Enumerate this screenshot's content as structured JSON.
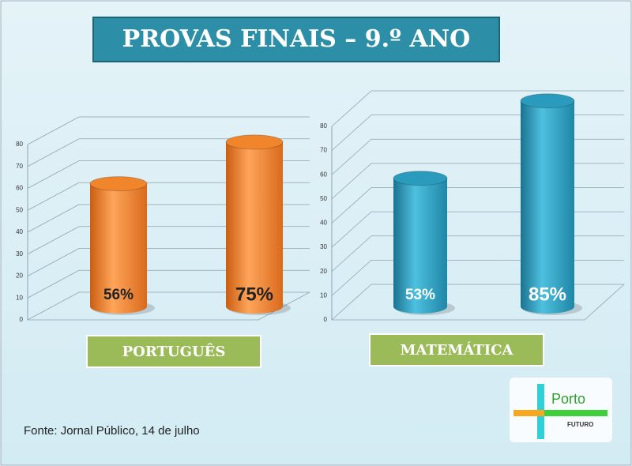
{
  "title": "PROVAS FINAIS – 9.º ANO",
  "source": "Fonte: Jornal Público, 14 de julho",
  "logo": {
    "text": "Porto",
    "subtext": "FUTURO"
  },
  "chart_data": [
    {
      "type": "bar",
      "x_label": "PORTUGUÊS",
      "values": [
        56,
        75
      ],
      "value_labels": [
        "56%",
        "75%"
      ],
      "color": "#f0852c",
      "ylim": [
        0,
        80
      ],
      "yticks": [
        0,
        10,
        20,
        30,
        40,
        50,
        60,
        70,
        80
      ],
      "grid": true
    },
    {
      "type": "bar",
      "x_label": "MATEMÁTICA",
      "values": [
        53,
        85
      ],
      "value_labels": [
        "53%",
        "85%"
      ],
      "color": "#2b9bbd",
      "ylim": [
        0,
        80
      ],
      "yticks": [
        0,
        10,
        20,
        30,
        40,
        50,
        60,
        70,
        80
      ],
      "grid": true
    }
  ]
}
